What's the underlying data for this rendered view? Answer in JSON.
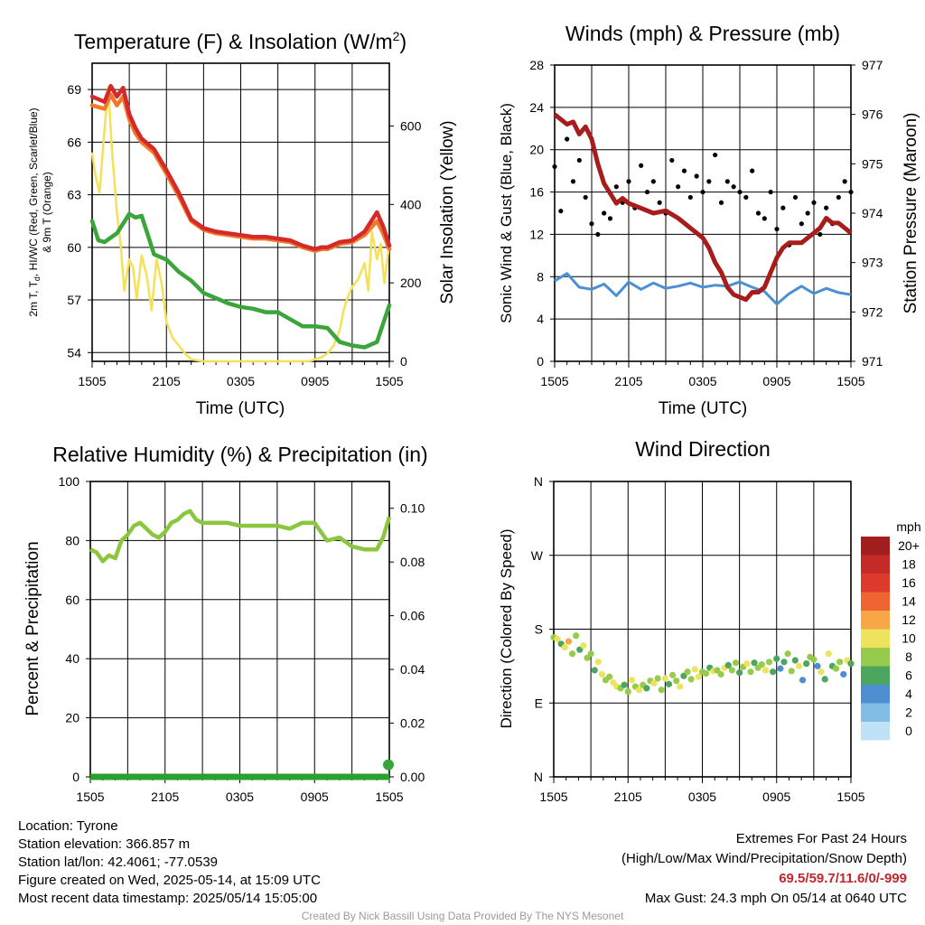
{
  "chart_data": [
    {
      "type": "line",
      "title": "Temperature (F) & Insolation (W/m²)",
      "ylabel": "2m T, Td, HI/WC (Red, Green, Scarlet/Blue) & 9m T (Orange)",
      "ylabel_line1": "2m T, T",
      "ylabel_sub": "d",
      "ylabel_line1_rest": ", HI/WC (Red, Green, Scarlet/Blue)",
      "ylabel_line2": "& 9m T (Orange)",
      "y2label": "Solar Insolation (Yellow)",
      "xlabel": "Time (UTC)",
      "ylim": [
        53.5,
        70.5
      ],
      "y2lim": [
        0,
        760
      ],
      "yticks": [
        54,
        57,
        60,
        63,
        66,
        69
      ],
      "y2ticks": [
        0,
        200,
        400,
        600
      ],
      "xticks": [
        "1505",
        "2105",
        "0305",
        "0905",
        "1505"
      ],
      "grid": true,
      "series": [
        {
          "name": "2m T",
          "color": "#d42a2a",
          "x": [
            0,
            1,
            1.5,
            2,
            2.5,
            3,
            3.5,
            4,
            5,
            6,
            7,
            8,
            9,
            9.5,
            10,
            11,
            12,
            13,
            14,
            15,
            16,
            17,
            18,
            18.5,
            19,
            20,
            21,
            22,
            23,
            23.5,
            24
          ],
          "values": [
            68.6,
            68.3,
            69.2,
            68.6,
            69.1,
            67.6,
            66.8,
            66.2,
            65.6,
            64.4,
            63.1,
            61.6,
            61.1,
            61.0,
            60.9,
            60.8,
            60.7,
            60.6,
            60.6,
            60.5,
            60.4,
            60.1,
            59.9,
            60.0,
            60.0,
            60.3,
            60.4,
            60.9,
            62.0,
            61.2,
            60.1
          ]
        },
        {
          "name": "9m T",
          "color": "#f07a2a",
          "x": [
            0,
            1,
            1.5,
            2,
            2.5,
            3,
            3.5,
            4,
            5,
            6,
            7,
            8,
            9,
            9.5,
            10,
            11,
            12,
            13,
            14,
            15,
            16,
            17,
            18,
            18.5,
            19,
            20,
            21,
            22,
            23,
            23.5,
            24
          ],
          "values": [
            68.1,
            67.9,
            68.7,
            68.1,
            68.6,
            67.3,
            66.5,
            66.0,
            65.4,
            64.2,
            62.9,
            61.5,
            61.0,
            60.9,
            60.8,
            60.7,
            60.6,
            60.5,
            60.5,
            60.4,
            60.3,
            60.0,
            59.8,
            59.9,
            59.9,
            60.2,
            60.3,
            60.7,
            61.5,
            60.8,
            59.9
          ]
        },
        {
          "name": "Td",
          "color": "#3aa53a",
          "x": [
            0,
            0.5,
            1,
            2,
            3,
            3.5,
            4,
            4.5,
            5,
            6,
            7,
            8,
            9,
            10,
            11,
            12,
            13,
            14,
            15,
            16,
            17,
            18,
            19,
            20,
            21,
            22,
            23,
            24
          ],
          "values": [
            61.5,
            60.4,
            60.3,
            60.8,
            61.9,
            61.7,
            61.8,
            60.7,
            59.6,
            59.3,
            58.6,
            58.1,
            57.4,
            57.1,
            56.8,
            56.6,
            56.5,
            56.3,
            56.3,
            55.9,
            55.5,
            55.5,
            55.4,
            54.6,
            54.4,
            54.3,
            54.6,
            56.7
          ]
        },
        {
          "name": "Solar",
          "color": "#f5e05a",
          "axis": "y2",
          "x": [
            0,
            0.3,
            0.6,
            1,
            1.3,
            1.6,
            2,
            2.3,
            2.6,
            3,
            3.3,
            3.6,
            4,
            4.4,
            4.8,
            5.2,
            5.6,
            6,
            6.5,
            7,
            7.5,
            8,
            9,
            10,
            11,
            12,
            13,
            14,
            15,
            16,
            17,
            17.5,
            18,
            18.5,
            19,
            19.5,
            20,
            20.3,
            20.6,
            21,
            21.5,
            22,
            22.3,
            22.6,
            23,
            23.3,
            23.6,
            24
          ],
          "values": [
            530,
            470,
            430,
            590,
            700,
            540,
            380,
            300,
            180,
            260,
            240,
            160,
            270,
            220,
            130,
            260,
            200,
            100,
            60,
            40,
            20,
            5,
            0,
            0,
            0,
            0,
            0,
            0,
            0,
            0,
            0,
            0,
            5,
            10,
            20,
            40,
            80,
            130,
            160,
            190,
            210,
            250,
            180,
            330,
            260,
            300,
            200,
            300
          ]
        }
      ]
    },
    {
      "type": "line",
      "title": "Winds (mph) & Pressure (mb)",
      "ylabel": "Sonic Wind & Gust (Blue, Black)",
      "y2label": "Station Pressure (Maroon)",
      "xlabel": "Time (UTC)",
      "ylim": [
        0,
        28
      ],
      "y2lim": [
        971,
        977
      ],
      "yticks": [
        0,
        4,
        8,
        12,
        16,
        20,
        24,
        28
      ],
      "y2ticks": [
        971,
        972,
        973,
        974,
        975,
        976,
        977
      ],
      "xticks": [
        "1505",
        "2105",
        "0305",
        "0905",
        "1505"
      ],
      "grid": true,
      "series": [
        {
          "name": "Sonic Wind",
          "color": "#4a90d2",
          "x": [
            0,
            1,
            2,
            3,
            4,
            5,
            6,
            7,
            8,
            9,
            10,
            11,
            12,
            13,
            14,
            15,
            16,
            17,
            18,
            19,
            20,
            21,
            22,
            23,
            24
          ],
          "values": [
            7.6,
            8.3,
            7.0,
            6.8,
            7.3,
            6.2,
            7.5,
            6.8,
            7.4,
            6.9,
            7.1,
            7.4,
            7.0,
            7.2,
            7.1,
            7.5,
            7.0,
            6.6,
            5.4,
            6.4,
            7.1,
            6.4,
            6.9,
            6.5,
            6.3
          ]
        },
        {
          "name": "Gust",
          "color": "#000000",
          "style": "points",
          "x": [
            0,
            0.5,
            1,
            1.5,
            2,
            2.5,
            3,
            3.5,
            4,
            4.5,
            5,
            5.5,
            6,
            6.5,
            7,
            7.5,
            8,
            8.5,
            9,
            9.5,
            10,
            10.5,
            11,
            11.5,
            12,
            12.5,
            13,
            13.5,
            14,
            14.5,
            15,
            15.5,
            16,
            16.5,
            17,
            17.5,
            18,
            18.5,
            19,
            19.5,
            20,
            20.5,
            21,
            21.5,
            22,
            22.5,
            23,
            23.5,
            24
          ],
          "values": [
            18.4,
            14.2,
            21.0,
            17.0,
            19.0,
            15.5,
            13.0,
            12.0,
            14.0,
            13.5,
            16.5,
            15.0,
            17.0,
            14.5,
            18.5,
            16.0,
            17.0,
            15.0,
            14.0,
            19.0,
            16.5,
            18.0,
            15.5,
            17.5,
            16.0,
            17.0,
            19.5,
            15.0,
            17.0,
            16.5,
            16.0,
            15.5,
            18.0,
            14.0,
            13.5,
            16.0,
            12.5,
            14.5,
            11.0,
            15.5,
            13.0,
            14.0,
            15.0,
            12.0,
            14.5,
            13.0,
            15.5,
            17.0,
            16.0
          ]
        },
        {
          "name": "Station Pressure",
          "color": "#a81c1c",
          "axis": "y2",
          "x": [
            0,
            0.5,
            1,
            1.5,
            2,
            2.5,
            3,
            3.5,
            4,
            4.5,
            5,
            5.5,
            6,
            7,
            8,
            9,
            10,
            11,
            11.5,
            12,
            12.5,
            13,
            13.5,
            14,
            14.5,
            15,
            15.5,
            16,
            16.5,
            17,
            18,
            18.5,
            19,
            20,
            21,
            21.5,
            22,
            22.5,
            23,
            23.5,
            24
          ],
          "values": [
            976.0,
            975.9,
            975.8,
            975.85,
            975.6,
            975.75,
            975.5,
            975.0,
            974.6,
            974.4,
            974.2,
            974.3,
            974.2,
            974.1,
            974.0,
            974.05,
            973.9,
            973.7,
            973.6,
            973.5,
            973.3,
            973.0,
            972.8,
            972.5,
            972.35,
            972.3,
            972.25,
            972.4,
            972.4,
            972.5,
            973.1,
            973.3,
            973.4,
            973.4,
            973.6,
            973.7,
            973.9,
            973.8,
            973.8,
            973.7,
            973.6
          ]
        }
      ]
    },
    {
      "type": "line",
      "title": "Relative Humidity (%) & Precipitation (in)",
      "ylabel": "Percent & Precipitation",
      "xlabel": "",
      "ylim": [
        0,
        100
      ],
      "y2lim": [
        0,
        0.11
      ],
      "yticks": [
        0,
        20,
        40,
        60,
        80,
        100
      ],
      "y2ticks": [
        "0.00",
        "0.02",
        "0.04",
        "0.06",
        "0.08",
        "0.10"
      ],
      "xticks": [
        "1505",
        "2105",
        "0305",
        "0905",
        "1505"
      ],
      "grid": true,
      "series": [
        {
          "name": "RH",
          "color": "#8cc63f",
          "x": [
            0,
            0.5,
            1,
            1.5,
            2,
            2.5,
            3,
            3.5,
            4,
            4.5,
            5,
            5.5,
            6,
            6.5,
            7,
            7.5,
            8,
            8.5,
            9,
            10,
            11,
            12,
            13,
            14,
            15,
            16,
            17,
            18,
            18.5,
            19,
            20,
            21,
            22,
            23,
            23.5,
            24
          ],
          "values": [
            77,
            76,
            73,
            75,
            74,
            80,
            82,
            85,
            86,
            84,
            82,
            81,
            83,
            86,
            87,
            89,
            90,
            87,
            86,
            86,
            86,
            85,
            85,
            85,
            85,
            84,
            86,
            86,
            83,
            80,
            81,
            78,
            77,
            77,
            81,
            88
          ]
        },
        {
          "name": "Precipitation",
          "color": "#2ca02c",
          "axis": "y2",
          "x": [
            0,
            24
          ],
          "values": [
            0.0,
            0.0
          ]
        }
      ]
    },
    {
      "type": "scatter",
      "title": "Wind Direction",
      "ylabel": "Direction (Colored By Speed)",
      "xlabel": "",
      "yticks": [
        "N",
        "E",
        "S",
        "W",
        "N"
      ],
      "ylim": [
        0,
        360
      ],
      "xticks": [
        "1505",
        "2105",
        "0305",
        "0905",
        "1505"
      ],
      "grid": true,
      "colorbar_title": "mph",
      "colorbar_labels": [
        "20+",
        "18",
        "16",
        "14",
        "12",
        "10",
        "8",
        "6",
        "4",
        "2",
        "0"
      ],
      "colorbar_colors": [
        "#a21d1d",
        "#c42a26",
        "#dc3b2c",
        "#ef6531",
        "#f7a746",
        "#ede35c",
        "#96cb4b",
        "#4ca660",
        "#4f8ed0",
        "#82bde6",
        "#bfe2f7"
      ],
      "points": {
        "x": [
          0,
          0.3,
          0.6,
          0.9,
          1.2,
          1.5,
          1.8,
          2.1,
          2.4,
          2.7,
          3.0,
          3.3,
          3.6,
          3.9,
          4.2,
          4.5,
          4.8,
          5.1,
          5.4,
          5.7,
          6,
          6.3,
          6.6,
          6.9,
          7.2,
          7.5,
          7.8,
          8.1,
          8.4,
          8.7,
          9,
          9.3,
          9.6,
          9.9,
          10.2,
          10.5,
          10.8,
          11.1,
          11.4,
          11.7,
          12,
          12.3,
          12.6,
          12.9,
          13.2,
          13.5,
          13.8,
          14.1,
          14.4,
          14.7,
          15,
          15.3,
          15.6,
          15.9,
          16.2,
          16.5,
          16.8,
          17.1,
          17.4,
          17.7,
          18,
          18.3,
          18.6,
          18.9,
          19.2,
          19.5,
          19.8,
          20.1,
          20.4,
          20.7,
          21,
          21.3,
          21.6,
          21.9,
          22.2,
          22.5,
          22.8,
          23.1,
          23.4,
          23.7,
          24
        ],
        "dir": [
          170,
          168,
          162,
          158,
          165,
          150,
          172,
          155,
          160,
          145,
          150,
          130,
          140,
          125,
          118,
          122,
          115,
          110,
          108,
          112,
          104,
          118,
          110,
          106,
          112,
          108,
          117,
          114,
          120,
          106,
          120,
          113,
          124,
          117,
          110,
          123,
          128,
          119,
          131,
          122,
          128,
          126,
          133,
          129,
          130,
          125,
          133,
          136,
          130,
          139,
          127,
          134,
          138,
          128,
          139,
          133,
          137,
          130,
          140,
          128,
          144,
          132,
          140,
          150,
          129,
          142,
          135,
          118,
          138,
          146,
          143,
          135,
          128,
          119,
          150,
          135,
          132,
          140,
          125,
          142,
          138
        ],
        "speed": [
          8,
          10,
          6,
          9,
          12,
          7,
          8,
          6,
          9,
          7,
          8,
          6,
          9,
          10,
          7,
          8,
          9,
          10,
          8,
          6,
          7,
          9,
          8,
          10,
          7,
          6,
          8,
          9,
          7,
          8,
          10,
          6,
          7,
          8,
          9,
          6,
          7,
          8,
          9,
          10,
          7,
          8,
          6,
          9,
          7,
          8,
          9,
          6,
          7,
          8,
          6,
          7,
          9,
          8,
          6,
          7,
          8,
          9,
          7,
          6,
          5,
          4,
          6,
          8,
          7,
          5,
          9,
          4,
          6,
          8,
          7,
          4,
          9,
          5,
          10,
          6,
          8,
          7,
          4,
          9,
          6
        ]
      }
    }
  ],
  "station": {
    "location": "Location: Tyrone",
    "elevation": "Station elevation: 366.857 m",
    "latlon": "Station lat/lon: 42.4061; -77.0539",
    "created": "Figure created on Wed, 2025-05-14, at 15:09 UTC",
    "recent": "Most recent data timestamp: 2025/05/14 15:05:00"
  },
  "extremes": {
    "title": "Extremes For Past 24 Hours",
    "legend": "(High/Low/Max Wind/Precipitation/Snow Depth)",
    "values": "69.5/59.7/11.6/0/-999",
    "gust": "Max Gust: 24.3 mph On 05/14 at 0640 UTC"
  },
  "credit": "Created By Nick Bassill Using Data Provided By The NYS Mesonet"
}
